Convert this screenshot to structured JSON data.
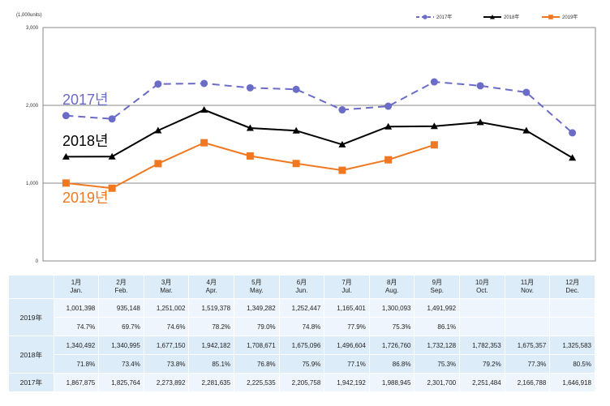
{
  "chart_data": {
    "type": "line",
    "unit_label": "(1,000units)",
    "categories": [
      "1",
      "2",
      "3",
      "4",
      "5",
      "6",
      "7",
      "8",
      "9",
      "10",
      "11",
      "12"
    ],
    "ylim": [
      0,
      3000
    ],
    "y_ticks": [
      "0",
      "1,000",
      "2,000",
      "3,000"
    ],
    "grid": true,
    "legend_position": "top-right",
    "series": [
      {
        "name": "2017年",
        "big_label": "2017년",
        "color": "#6b6bc8",
        "dash": true,
        "marker": "circle",
        "values": [
          1867.875,
          1825.764,
          2273.892,
          2281.635,
          2225.535,
          2205.758,
          1942.192,
          1988.945,
          2301.7,
          2251.484,
          2166.788,
          1646.918
        ]
      },
      {
        "name": "2018年",
        "big_label": "2018년",
        "color": "#000000",
        "dash": false,
        "marker": "triangle",
        "values": [
          1340.492,
          1340.995,
          1677.15,
          1942.182,
          1708.671,
          1675.096,
          1496.604,
          1726.76,
          1732.128,
          1782.353,
          1675.357,
          1325.583
        ]
      },
      {
        "name": "2019年",
        "big_label": "2019년",
        "color": "#f07820",
        "dash": false,
        "marker": "square",
        "values": [
          1001.398,
          935.148,
          1251.002,
          1519.378,
          1349.282,
          1252.447,
          1165.401,
          1300.093,
          1491.992,
          null,
          null,
          null
        ]
      }
    ]
  },
  "table": {
    "months": [
      {
        "num": "1月",
        "en": "Jan."
      },
      {
        "num": "2月",
        "en": "Feb."
      },
      {
        "num": "3月",
        "en": "Mar."
      },
      {
        "num": "4月",
        "en": "Apr."
      },
      {
        "num": "5月",
        "en": "May."
      },
      {
        "num": "6月",
        "en": "Jun."
      },
      {
        "num": "7月",
        "en": "Jul."
      },
      {
        "num": "8月",
        "en": "Aug."
      },
      {
        "num": "9月",
        "en": "Sep."
      },
      {
        "num": "10月",
        "en": "Oct."
      },
      {
        "num": "11月",
        "en": "Nov."
      },
      {
        "num": "12月",
        "en": "Dec."
      }
    ],
    "rows": [
      {
        "label": "2019年",
        "values": [
          "1,001,398",
          "935,148",
          "1,251,002",
          "1,519,378",
          "1,349,282",
          "1,252,447",
          "1,165,401",
          "1,300,093",
          "1,491,992",
          "",
          "",
          ""
        ],
        "pcts": [
          "74.7%",
          "69.7%",
          "74.6%",
          "78.2%",
          "79.0%",
          "74.8%",
          "77.9%",
          "75.3%",
          "86.1%",
          "",
          "",
          ""
        ]
      },
      {
        "label": "2018年",
        "values": [
          "1,340,492",
          "1,340,995",
          "1,677,150",
          "1,942,182",
          "1,708,671",
          "1,675,096",
          "1,496,604",
          "1,726,760",
          "1,732,128",
          "1,782,353",
          "1,675,357",
          "1,325,583"
        ],
        "pcts": [
          "71.8%",
          "73.4%",
          "73.8%",
          "85.1%",
          "76.8%",
          "75.9%",
          "77.1%",
          "86.8%",
          "75.3%",
          "79.2%",
          "77.3%",
          "80.5%"
        ]
      },
      {
        "label": "2017年",
        "values": [
          "1,867,875",
          "1,825,764",
          "2,273,892",
          "2,281,635",
          "2,225,535",
          "2,205,758",
          "1,942,192",
          "1,988,945",
          "2,301,700",
          "2,251,484",
          "2,166,788",
          "1,646,918"
        ],
        "pcts": null
      }
    ]
  }
}
